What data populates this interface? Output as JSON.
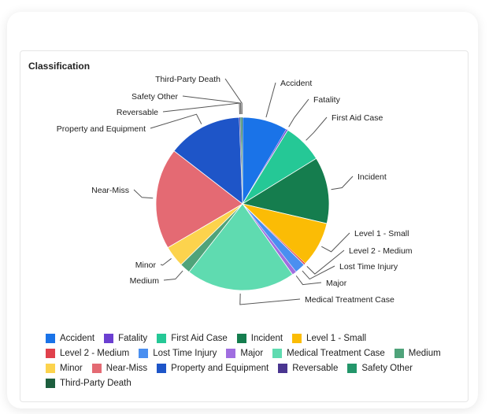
{
  "card": {
    "title": "Classification"
  },
  "chart_data": {
    "type": "pie",
    "title": "Classification",
    "categories": [
      "Accident",
      "Fatality",
      "First Aid Case",
      "Incident",
      "Level 1 - Small",
      "Level 2 - Medium",
      "Lost Time Injury",
      "Major",
      "Medical Treatment Case",
      "Medium",
      "Minor",
      "Near-Miss",
      "Property and Equipment",
      "Reversable",
      "Safety Other",
      "Third-Party Death"
    ],
    "values": [
      8.5,
      0.3,
      7.5,
      12.5,
      8.5,
      0.3,
      2.0,
      0.8,
      20.5,
      2.0,
      4.0,
      19.0,
      14.0,
      0.2,
      0.2,
      0.2
    ],
    "colors": [
      "#1a73e8",
      "#6b3fd1",
      "#25c896",
      "#157d4e",
      "#fbbc05",
      "#e0414c",
      "#4a8ff0",
      "#a06ee0",
      "#5fdbb0",
      "#4fa37a",
      "#fcd34d",
      "#e46a73",
      "#1e55c8",
      "#4a3590",
      "#23966a",
      "#1d5e3e"
    ],
    "legend_position": "bottom"
  }
}
